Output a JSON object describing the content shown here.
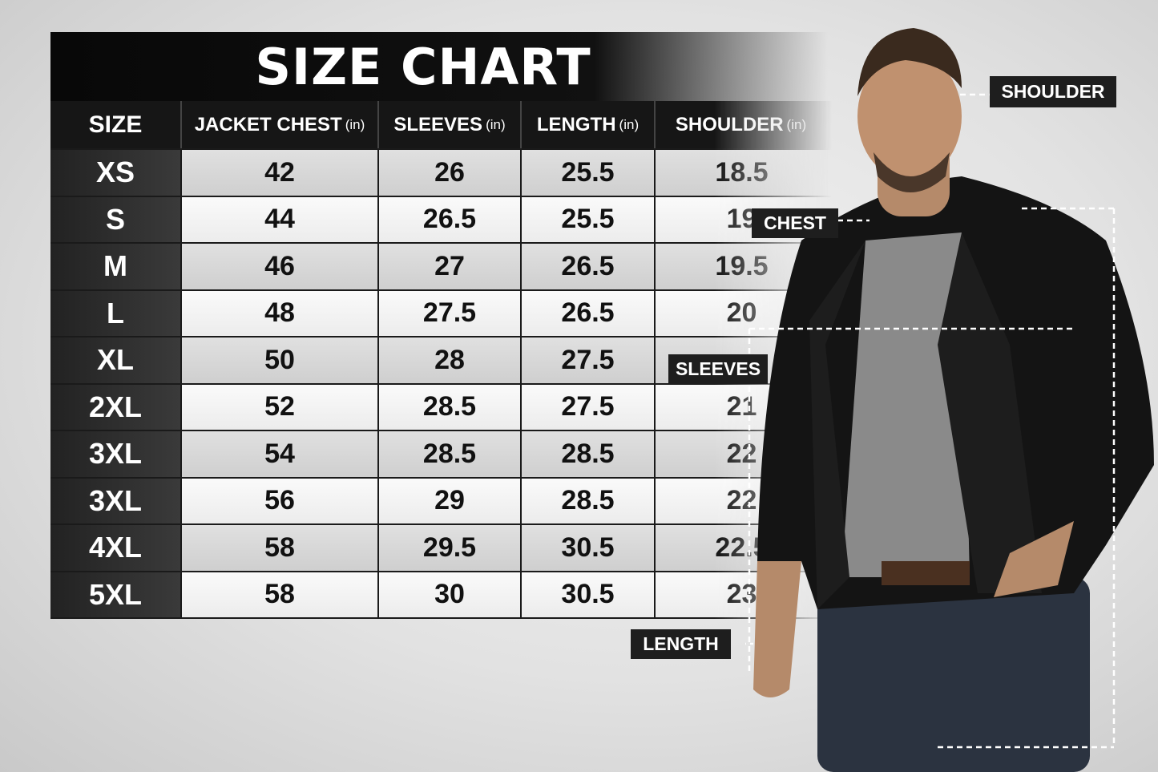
{
  "title": "SIZE CHART",
  "columns": [
    {
      "label": "SIZE",
      "unit": ""
    },
    {
      "label": "JACKET CHEST",
      "unit": "(in)"
    },
    {
      "label": "SLEEVES",
      "unit": "(in)"
    },
    {
      "label": "LENGTH",
      "unit": "(in)"
    },
    {
      "label": "SHOULDER",
      "unit": "(in)"
    }
  ],
  "rows": [
    [
      "XS",
      "42",
      "26",
      "25.5",
      "18.5"
    ],
    [
      "S",
      "44",
      "26.5",
      "25.5",
      "19"
    ],
    [
      "M",
      "46",
      "27",
      "26.5",
      "19.5"
    ],
    [
      "L",
      "48",
      "27.5",
      "26.5",
      "20"
    ],
    [
      "XL",
      "50",
      "28",
      "27.5",
      ""
    ],
    [
      "2XL",
      "52",
      "28.5",
      "27.5",
      "21"
    ],
    [
      "3XL",
      "54",
      "28.5",
      "28.5",
      "22"
    ],
    [
      "3XL",
      "56",
      "29",
      "28.5",
      "22"
    ],
    [
      "4XL",
      "58",
      "29.5",
      "30.5",
      "22.5"
    ],
    [
      "5XL",
      "58",
      "30",
      "30.5",
      "23"
    ]
  ],
  "labels": {
    "shoulder": "SHOULDER",
    "chest": "CHEST",
    "sleeves": "SLEEVES",
    "length": "LENGTH"
  }
}
